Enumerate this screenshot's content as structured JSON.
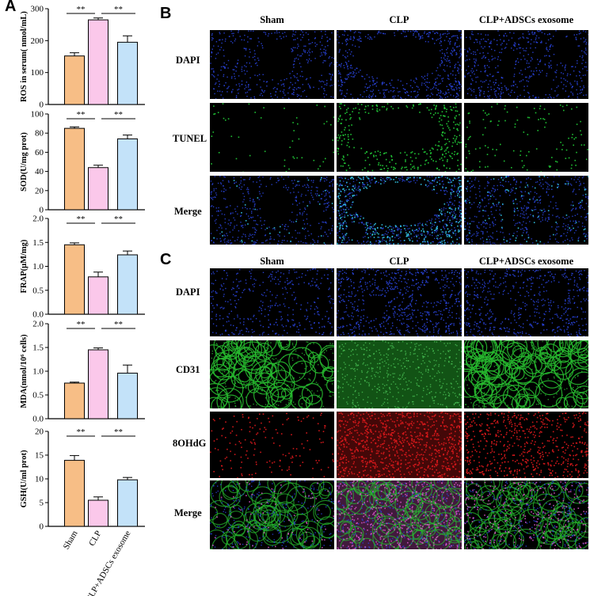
{
  "panels": {
    "a_label": "A",
    "b_label": "B",
    "c_label": "C"
  },
  "chart_data": [
    {
      "type": "bar",
      "categories": [
        "Sham",
        "CLP",
        "CLP+ADSCs exosome"
      ],
      "values": [
        152,
        265,
        195
      ],
      "errors": [
        10,
        6,
        20
      ],
      "ylabel": "ROS in serum( nmol/mL)",
      "ylim": [
        0,
        300
      ],
      "yticks": [
        "0",
        "100",
        "200",
        "300"
      ],
      "sig": [
        {
          "label": "**",
          "from": 0,
          "to": 1
        },
        {
          "label": "**",
          "from": 1,
          "to": 2
        }
      ]
    },
    {
      "type": "bar",
      "categories": [
        "Sham",
        "CLP",
        "CLP+ADSCs exosome"
      ],
      "values": [
        85,
        44,
        74
      ],
      "errors": [
        1.5,
        2.5,
        4
      ],
      "ylabel": "SOD(U/mg prot)",
      "ylim": [
        0,
        100
      ],
      "yticks": [
        "0",
        "20",
        "40",
        "60",
        "80",
        "100"
      ],
      "sig": [
        {
          "label": "**",
          "from": 0,
          "to": 1
        },
        {
          "label": "**",
          "from": 1,
          "to": 2
        }
      ]
    },
    {
      "type": "bar",
      "categories": [
        "Sham",
        "CLP",
        "CLP+ADSCs exosome"
      ],
      "values": [
        1.45,
        0.78,
        1.24
      ],
      "errors": [
        0.04,
        0.1,
        0.08
      ],
      "ylabel": "FRAP(μM/mg)",
      "ylim": [
        0,
        2.0
      ],
      "yticks": [
        "0.0",
        "0.5",
        "1.0",
        "1.5",
        "2.0"
      ],
      "sig": [
        {
          "label": "**",
          "from": 0,
          "to": 1
        },
        {
          "label": "**",
          "from": 1,
          "to": 2
        }
      ]
    },
    {
      "type": "bar",
      "categories": [
        "Sham",
        "CLP",
        "CLP+ADSCs exosome"
      ],
      "values": [
        0.75,
        1.45,
        0.96
      ],
      "errors": [
        0.02,
        0.04,
        0.17
      ],
      "ylabel": "MDA(nmol/10⁶ cells)",
      "ylim": [
        0,
        2.0
      ],
      "yticks": [
        "0.0",
        "0.5",
        "1.0",
        "1.5",
        "2.0"
      ],
      "sig": [
        {
          "label": "**",
          "from": 0,
          "to": 1
        },
        {
          "label": "**",
          "from": 1,
          "to": 2
        }
      ]
    },
    {
      "type": "bar",
      "categories": [
        "Sham",
        "CLP",
        "CLP+ADSCs exosome"
      ],
      "values": [
        13.9,
        5.5,
        9.8
      ],
      "errors": [
        1.0,
        0.7,
        0.5
      ],
      "ylabel": "GSH(U/ml prot)",
      "ylim": [
        0,
        20
      ],
      "yticks": [
        "0",
        "5",
        "10",
        "15",
        "20"
      ],
      "sig": [
        {
          "label": "**",
          "from": 0,
          "to": 1
        },
        {
          "label": "**",
          "from": 1,
          "to": 2
        }
      ]
    }
  ],
  "bar_colors": [
    "#f7be86",
    "#fbc8ea",
    "#c3e2f9"
  ],
  "panel_b": {
    "columns": [
      "Sham",
      "CLP",
      "CLP+ADSCs exosome"
    ],
    "rows": [
      "DAPI",
      "TUNEL",
      "Merge"
    ]
  },
  "panel_c": {
    "columns": [
      "Sham",
      "CLP",
      "CLP+ADSCs exosome"
    ],
    "rows": [
      "DAPI",
      "CD31",
      "8OHdG",
      "Merge"
    ]
  },
  "stain_colors": {
    "dapi": "#2a45e0",
    "tunel": "#22d33a",
    "merge_b": "#33c8e8",
    "cd31": "#27b92f",
    "ohdg": "#e0191c",
    "merge_c": "#d856c8"
  }
}
